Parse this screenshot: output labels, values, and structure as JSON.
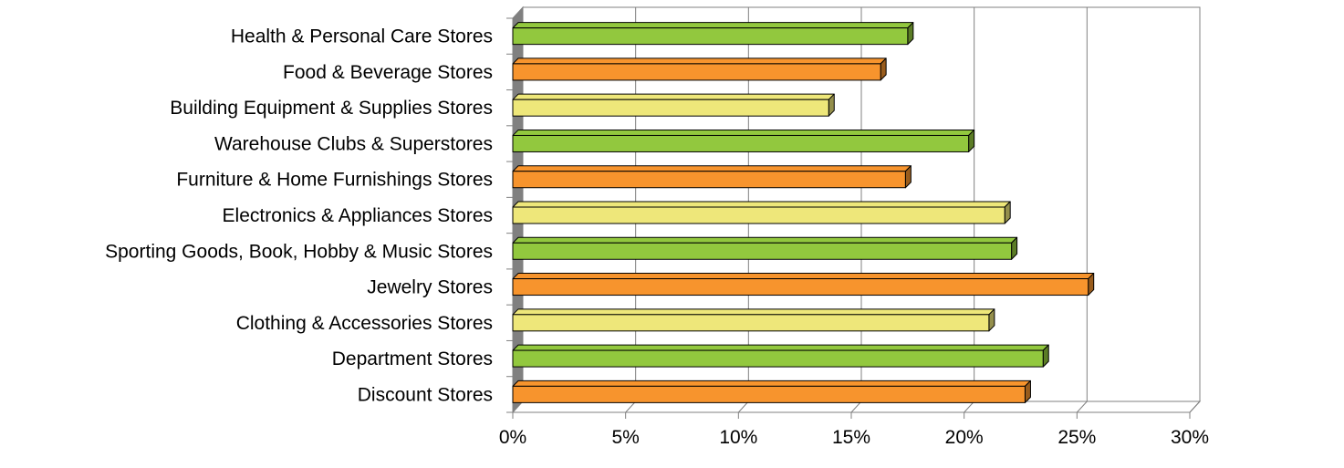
{
  "chart_data": {
    "type": "bar",
    "orientation": "horizontal",
    "style": "3d",
    "categories": [
      "Health & Personal Care Stores",
      "Food & Beverage Stores",
      "Building Equipment & Supplies Stores",
      "Warehouse Clubs & Superstores",
      "Furniture & Home Furnishings Stores",
      "Electronics & Appliances Stores",
      "Sporting Goods, Book, Hobby & Music Stores",
      "Jewelry Stores",
      "Clothing & Accessories Stores",
      "Department Stores",
      "Discount Stores"
    ],
    "values": [
      17.5,
      16.3,
      14.0,
      20.2,
      17.4,
      21.8,
      22.1,
      25.5,
      21.1,
      23.5,
      22.7
    ],
    "bar_colors": [
      "#92C83E",
      "#F7942D",
      "#EEE77A",
      "#92C83E",
      "#F7942D",
      "#EEE77A",
      "#92C83E",
      "#F7942D",
      "#EEE77A",
      "#92C83E",
      "#F7942D"
    ],
    "xlim": [
      0,
      30
    ],
    "xticks": [
      "0%",
      "5%",
      "10%",
      "15%",
      "20%",
      "25%",
      "30%"
    ],
    "grid": true,
    "title": "",
    "xlabel": "",
    "ylabel": ""
  }
}
